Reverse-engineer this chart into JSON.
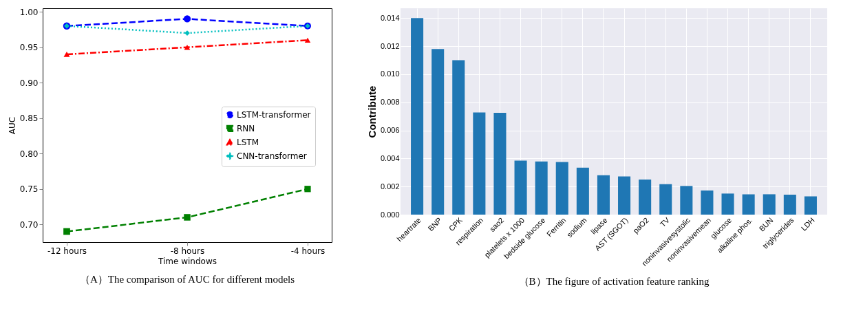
{
  "chart_data": [
    {
      "type": "line",
      "categories": [
        "-12 hours",
        "-8 hours",
        "-4 hours"
      ],
      "xlabel": "Time windows",
      "ylabel": "AUC",
      "ylim": [
        0.675,
        1.005
      ],
      "yticks": [
        {
          "value": 0.7,
          "label": "0.70"
        },
        0.75,
        {
          "value": 0.8,
          "label": "0.80"
        },
        0.85,
        {
          "value": 0.9,
          "label": "0.90"
        },
        0.95,
        {
          "value": 1.0,
          "label": "1.00"
        }
      ],
      "grid": false,
      "legend": "right",
      "series": [
        {
          "name": "LSTM-transformer",
          "color": "#0000ff",
          "marker": "circle",
          "line_style": "dashed",
          "values": [
            0.98,
            0.99,
            0.98
          ]
        },
        {
          "name": "RNN",
          "color": "#008000",
          "marker": "square",
          "line_style": "dashed",
          "values": [
            0.69,
            0.71,
            0.75
          ]
        },
        {
          "name": "LSTM",
          "color": "#ff0000",
          "marker": "triangle",
          "line_style": "dashdot",
          "values": [
            0.94,
            0.95,
            0.96
          ]
        },
        {
          "name": "CNN-transformer",
          "color": "#00bfbf",
          "marker": "diamond",
          "line_style": "dotted",
          "values": [
            0.98,
            0.97,
            0.98
          ]
        }
      ],
      "annotations": [
        "（A）The comparison of AUC for different models"
      ]
    },
    {
      "type": "bar",
      "categories": [
        "heartrate",
        "BNP",
        "CPK",
        "respiration",
        "sao2",
        "platelets x 1000",
        "bedside glucose",
        "Ferritin",
        "sodium",
        "lipase",
        "AST (SGOT)",
        "paO2",
        "TV",
        "noninvasivesystolic",
        "noninvasivemean",
        "glucose",
        "alkaline phos.",
        "BUN",
        "triglycerides",
        "LDH"
      ],
      "values": [
        0.014,
        0.0118,
        0.011,
        0.00728,
        0.00725,
        0.00385,
        0.00378,
        0.00375,
        0.00335,
        0.0028,
        0.00272,
        0.0025,
        0.00217,
        0.00204,
        0.00172,
        0.0015,
        0.00145,
        0.00145,
        0.00142,
        0.0013
      ],
      "color": "#1f77b4",
      "ylabel": "Contribute",
      "ylim": [
        0,
        0.0147
      ],
      "yticks": [
        {
          "value": 0,
          "label": "0.000"
        },
        0.002,
        0.004,
        0.006,
        0.008,
        {
          "value": 0.01,
          "label": "0.010"
        },
        0.012,
        0.014
      ],
      "grid": true,
      "annotations": [
        "（B）The figure of activation feature ranking"
      ]
    }
  ]
}
